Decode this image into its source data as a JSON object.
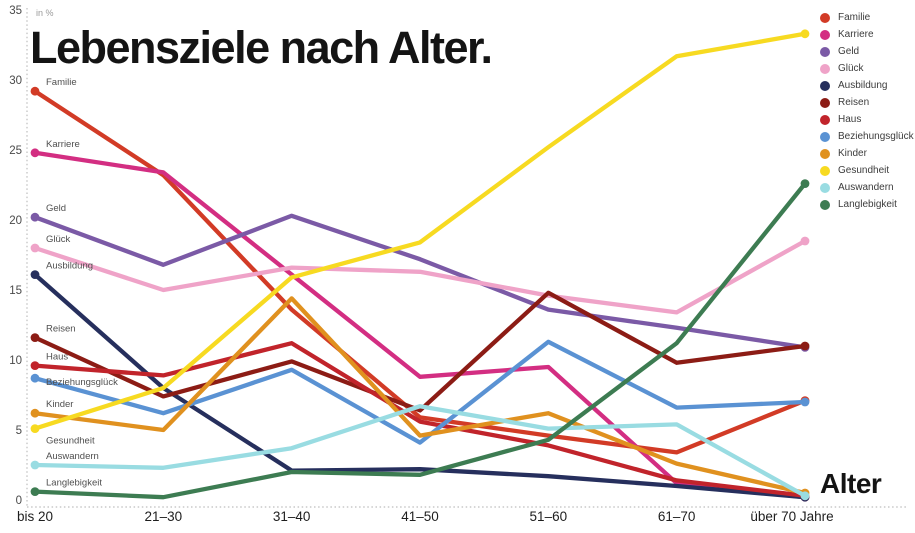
{
  "title": "Lebensziele nach Alter.",
  "unit_note": "in %",
  "xaxis_title": "Alter",
  "chart_data": {
    "type": "line",
    "title": "Lebensziele nach Alter.",
    "ylabel": "in %",
    "xlabel": "Alter",
    "ylim": [
      0,
      35
    ],
    "ytick_step": 5,
    "grid": false,
    "legend_position": "top-right",
    "categories": [
      "bis 20",
      "21–30",
      "31–40",
      "41–50",
      "51–60",
      "61–70",
      "über 70 Jahre"
    ],
    "series": [
      {
        "name": "Familie",
        "color": "#d23b26",
        "label_offset": "above",
        "values": [
          29.2,
          23.2,
          13.6,
          5.9,
          4.6,
          3.4,
          7.1
        ]
      },
      {
        "name": "Karriere",
        "color": "#d32e82",
        "label_offset": "above",
        "values": [
          24.8,
          23.4,
          16.1,
          8.8,
          9.5,
          1.2,
          0.2
        ]
      },
      {
        "name": "Geld",
        "color": "#7b5aa6",
        "label_offset": "above",
        "values": [
          20.2,
          16.8,
          20.3,
          17.2,
          13.6,
          12.3,
          10.9
        ]
      },
      {
        "name": "Glück",
        "color": "#efa3c8",
        "label_offset": "above",
        "values": [
          18.0,
          15.0,
          16.6,
          16.3,
          14.6,
          13.4,
          18.5
        ]
      },
      {
        "name": "Ausbildung",
        "color": "#262f5d",
        "label_offset": "above",
        "values": [
          16.1,
          8.0,
          2.1,
          2.2,
          1.7,
          1.0,
          0.2
        ]
      },
      {
        "name": "Reisen",
        "color": "#8c1c15",
        "label_offset": "above",
        "values": [
          11.6,
          7.4,
          9.9,
          6.4,
          14.8,
          9.8,
          11.0
        ]
      },
      {
        "name": "Haus",
        "color": "#c1242b",
        "label_offset": "above",
        "values": [
          9.6,
          8.9,
          11.2,
          5.6,
          3.9,
          1.4,
          0.3
        ]
      },
      {
        "name": "Beziehungsglück",
        "color": "#5a92d3",
        "label_offset": "on",
        "values": [
          8.7,
          6.2,
          9.3,
          4.1,
          11.3,
          6.6,
          7.0
        ]
      },
      {
        "name": "Kinder",
        "color": "#e0911f",
        "label_offset": "above",
        "values": [
          6.2,
          5.0,
          14.4,
          4.6,
          6.2,
          2.6,
          0.5
        ]
      },
      {
        "name": "Gesundheit",
        "color": "#f7da21",
        "label_offset": "below",
        "values": [
          5.1,
          8.0,
          15.9,
          18.4,
          25.2,
          31.7,
          33.3
        ]
      },
      {
        "name": "Auswandern",
        "color": "#99dce2",
        "label_offset": "above",
        "values": [
          2.5,
          2.3,
          3.7,
          6.7,
          5.1,
          5.4,
          0.3
        ]
      },
      {
        "name": "Langlebigkeit",
        "color": "#3d7c52",
        "label_offset": "above",
        "values": [
          0.6,
          0.2,
          2.0,
          1.8,
          4.3,
          11.2,
          22.6
        ]
      }
    ]
  }
}
